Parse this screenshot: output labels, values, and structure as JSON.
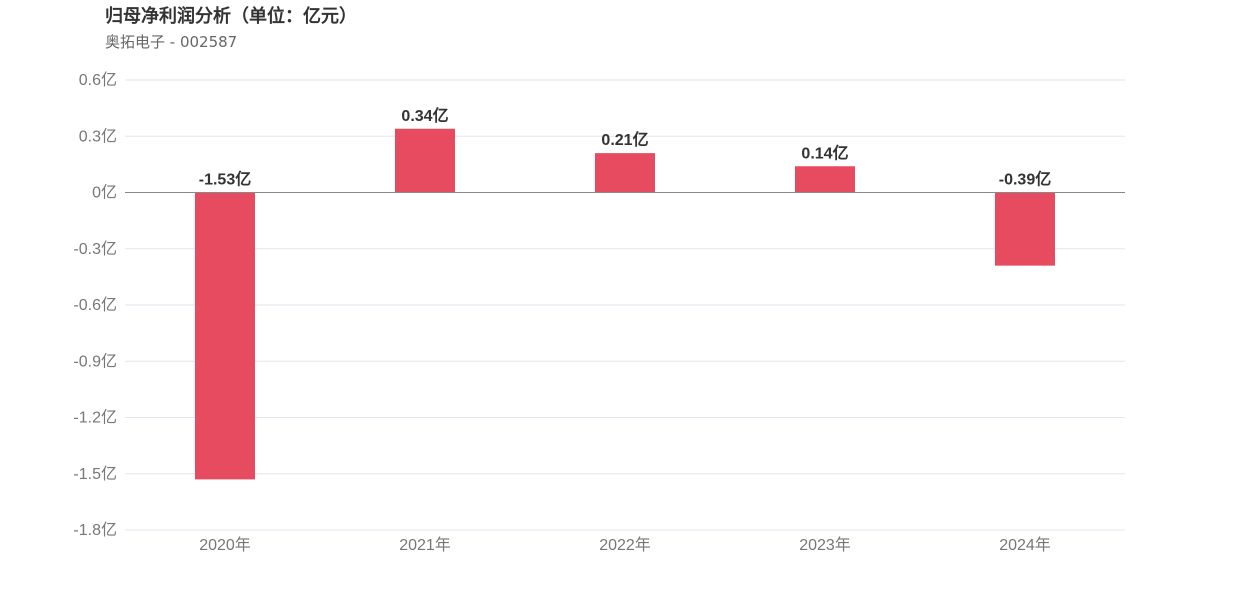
{
  "header": {
    "title": "归母净利润分析（单位：亿元）",
    "subtitle": "奥拓电子 - 002587"
  },
  "chart_data": {
    "type": "bar",
    "title": "归母净利润分析（单位：亿元）",
    "subtitle": "奥拓电子 - 002587",
    "categories": [
      "2020年",
      "2021年",
      "2022年",
      "2023年",
      "2024年"
    ],
    "series": [
      {
        "values": [
          -1.53,
          0.34,
          0.21,
          0.14,
          -0.39
        ]
      }
    ],
    "data_labels": [
      "-1.53亿",
      "0.34亿",
      "0.21亿",
      "0.14亿",
      "-0.39亿"
    ],
    "y_ticks": [
      0.6,
      0.3,
      0,
      -0.3,
      -0.6,
      -0.9,
      -1.2,
      -1.5,
      -1.8
    ],
    "y_tick_labels": [
      "0.6亿",
      "0.3亿",
      "0亿",
      "-0.3亿",
      "-0.6亿",
      "-0.9亿",
      "-1.2亿",
      "-1.5亿",
      "-1.8亿"
    ],
    "ylim": [
      -1.8,
      0.6
    ],
    "xlabel": "",
    "ylabel": "",
    "grid": true,
    "legend": "none",
    "colors": {
      "bar": "#e64b5f",
      "grid": "#e3e6f0",
      "zero_line": "#888888",
      "tick_text": "#777777",
      "label_text": "#333333"
    }
  }
}
